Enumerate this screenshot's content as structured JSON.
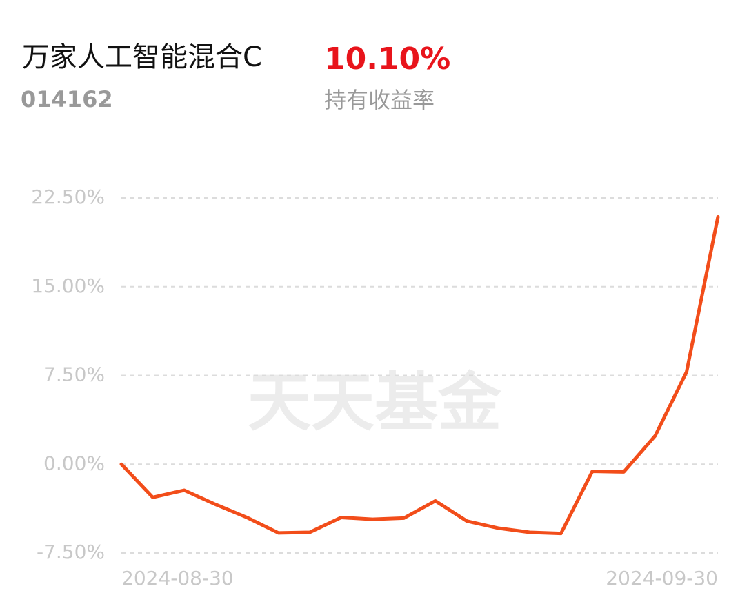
{
  "header": {
    "title": "万家人工智能混合C",
    "code": "014162",
    "return": "10.10%",
    "return_caption": "持有收益率"
  },
  "chart_data": {
    "type": "line",
    "watermark": "天天基金",
    "categories": [
      "2024-08-30",
      null,
      null,
      null,
      null,
      null,
      null,
      null,
      null,
      null,
      null,
      null,
      null,
      null,
      null,
      null,
      null,
      null,
      null,
      "2024-09-30"
    ],
    "series": [
      {
        "color": "#f24d1a",
        "values": [
          0,
          -2.8,
          -2.2,
          -3.4,
          -4.5,
          -5.8,
          -5.75,
          -4.5,
          -4.65,
          -4.55,
          -3.1,
          -4.8,
          -5.4,
          -5.75,
          -5.85,
          -0.6,
          -0.65,
          2.4,
          7.8,
          20.9
        ]
      }
    ],
    "ylim": [
      -7.5,
      22.5
    ],
    "yticks": [
      {
        "value": -7.5,
        "label": "-7.50%"
      },
      {
        "value": 0,
        "label": "0.00%"
      },
      {
        "value": 7.5,
        "label": "7.50%"
      },
      {
        "value": 15,
        "label": "15.00%"
      },
      {
        "value": 22.5,
        "label": "22.50%"
      }
    ],
    "grid": true
  }
}
